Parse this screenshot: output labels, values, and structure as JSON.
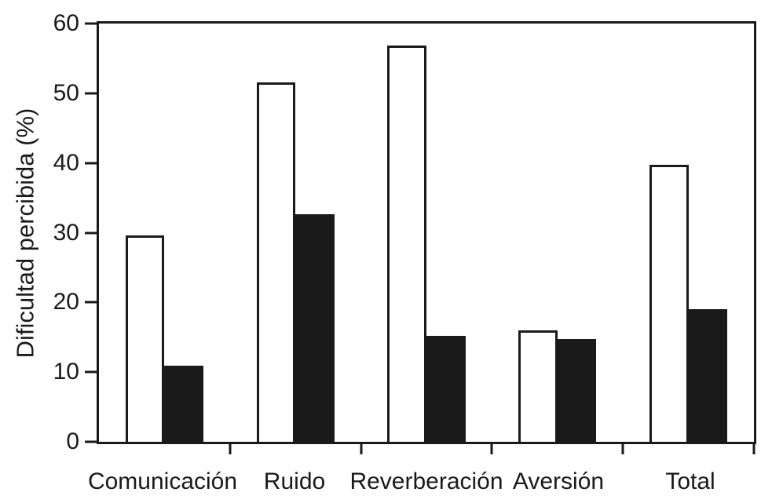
{
  "chart_data": {
    "type": "bar",
    "title": "",
    "ylabel": "Dificultad percibida (%)",
    "xlabel": "",
    "categories": [
      "Comunicación",
      "Ruido",
      "Reverberación",
      "Aversión",
      "Total"
    ],
    "series": [
      {
        "name": "serie-blanca",
        "fill": "#ffffff",
        "outline": "#1a1a1a",
        "values": [
          29.6,
          51.6,
          56.9,
          16.0,
          39.7
        ]
      },
      {
        "name": "serie-negra",
        "fill": "#1a1a1a",
        "outline": "#1a1a1a",
        "values": [
          10.9,
          32.6,
          15.2,
          14.8,
          19.0
        ]
      }
    ],
    "ylim": [
      0,
      60
    ],
    "yticks": [
      0,
      10,
      20,
      30,
      40,
      50,
      60
    ],
    "grid": false,
    "legend": "none",
    "frame": "full-box",
    "axis_color": "#1a1a1a",
    "background_color": "#ffffff",
    "bar_width_pct": 5.95
  }
}
